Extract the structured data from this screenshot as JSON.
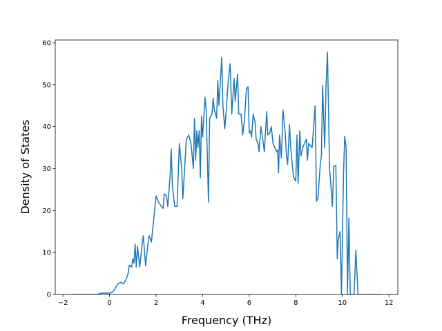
{
  "chart_data": {
    "type": "line",
    "xlabel": "Frequency (THz)",
    "ylabel": "Density of States",
    "color": "#1f77b4",
    "xlim": [
      -2.33,
      12.38
    ],
    "ylim": [
      0,
      60.66
    ],
    "xticks": [
      {
        "value": -2,
        "label": "−2"
      },
      0,
      2,
      4,
      6,
      8,
      10,
      12
    ],
    "yticks": [
      0,
      10,
      20,
      30,
      40,
      50,
      60
    ],
    "x": [
      -1.65,
      -0.5,
      -0.4,
      -0.2,
      0,
      0.1,
      0.2,
      0.3,
      0.4,
      0.5,
      0.6,
      0.7,
      0.8,
      0.85,
      0.95,
      1.0,
      1.05,
      1.1,
      1.15,
      1.2,
      1.3,
      1.4,
      1.45,
      1.55,
      1.65,
      1.7,
      1.8,
      1.9,
      2.0,
      2.1,
      2.3,
      2.35,
      2.45,
      2.5,
      2.6,
      2.65,
      2.7,
      2.8,
      2.9,
      3.0,
      3.1,
      3.15,
      3.3,
      3.4,
      3.5,
      3.6,
      3.65,
      3.7,
      3.75,
      3.8,
      3.85,
      3.9,
      3.95,
      4.0,
      4.1,
      4.15,
      4.25,
      4.3,
      4.4,
      4.45,
      4.5,
      4.6,
      4.65,
      4.7,
      4.82,
      4.87,
      4.95,
      5.0,
      5.1,
      5.18,
      5.25,
      5.35,
      5.4,
      5.5,
      5.55,
      5.65,
      5.72,
      5.8,
      5.88,
      5.95,
      6.0,
      6.05,
      6.1,
      6.17,
      6.25,
      6.3,
      6.38,
      6.42,
      6.5,
      6.58,
      6.65,
      6.75,
      6.8,
      6.88,
      6.95,
      7.02,
      7.1,
      7.18,
      7.22,
      7.26,
      7.3,
      7.38,
      7.45,
      7.55,
      7.6,
      7.65,
      7.73,
      7.78,
      7.9,
      8.0,
      8.05,
      8.1,
      8.17,
      8.22,
      8.3,
      8.45,
      8.5,
      8.55,
      8.7,
      8.83,
      8.89,
      8.95,
      9.05,
      9.1,
      9.15,
      9.24,
      9.3,
      9.36,
      9.45,
      9.52,
      9.57,
      9.63,
      9.72,
      9.78,
      9.82,
      9.9,
      9.96,
      10.05,
      10.1,
      10.16,
      10.22,
      10.28,
      10.34,
      10.5,
      10.58,
      10.67,
      11.72
    ],
    "values": [
      0,
      0,
      0.3,
      0.3,
      0.3,
      0.5,
      1,
      2,
      2.7,
      2.9,
      2.5,
      3.5,
      5,
      7,
      6.5,
      8.5,
      7.5,
      12,
      6.5,
      11.5,
      6.5,
      12,
      14,
      6.8,
      12,
      14,
      12.5,
      18,
      23.5,
      22,
      20.5,
      24,
      23.5,
      21,
      28,
      34.7,
      26,
      21,
      21,
      36,
      30,
      22.8,
      37,
      38,
      36,
      30,
      42,
      32,
      39,
      35,
      39,
      27.8,
      42.5,
      37.5,
      47,
      44,
      22,
      42,
      43,
      46.8,
      44,
      42,
      51,
      45,
      56.5,
      45,
      39.5,
      43,
      51,
      55,
      43,
      51.5,
      46,
      52.5,
      43,
      43,
      38,
      42,
      49,
      49.5,
      38.5,
      39,
      37.5,
      43,
      41,
      37,
      36,
      34,
      40,
      37,
      34,
      43.6,
      38,
      38.5,
      40,
      36,
      35,
      34,
      34.5,
      29,
      38,
      32.5,
      44,
      38,
      33,
      31,
      40.5,
      35,
      28,
      27,
      38,
      26.5,
      39,
      33,
      35,
      37,
      32,
      36,
      35,
      45,
      22.2,
      22.8,
      31,
      33,
      49.8,
      35,
      50,
      57.8,
      30,
      25,
      21,
      30.5,
      30.8,
      8.5,
      13,
      15,
      0,
      29,
      37.7,
      35,
      0,
      18.2,
      0,
      0,
      10.5,
      0,
      0
    ]
  }
}
